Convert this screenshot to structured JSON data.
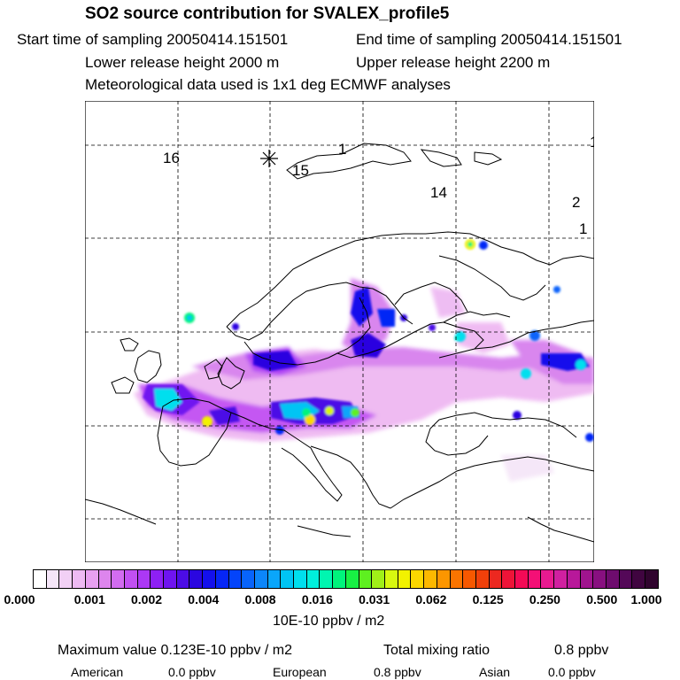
{
  "header": {
    "title": "SO2 source contribution for SVALEX_profile5",
    "start": "Start time of sampling 20050414.151501",
    "end": "End time of sampling 20050414.151501",
    "lower": "Lower release height 2000 m",
    "upper": "Upper release height 2200 m",
    "met": "Meteorological data used is 1x1 deg ECMWF analyses"
  },
  "map": {
    "labels": [
      "16",
      "15",
      "1",
      "14",
      "2",
      "1",
      "1"
    ],
    "marker": "release-site-asterisk"
  },
  "colorbar": {
    "colors": [
      "#ffffff",
      "#f5e6f8",
      "#f2d0f5",
      "#eebaf3",
      "#e7a0f0",
      "#dd85ed",
      "#d26cf0",
      "#c150f2",
      "#ac38f5",
      "#8e20f4",
      "#6f14f0",
      "#4c0ce6",
      "#2a06e0",
      "#1410ec",
      "#0626f6",
      "#0444fa",
      "#0864fb",
      "#0c86fa",
      "#0aa6fa",
      "#00c4f4",
      "#00dfee",
      "#00f0dc",
      "#00f6b0",
      "#00f47c",
      "#18f044",
      "#5ef020",
      "#a0f018",
      "#d8f810",
      "#f2f200",
      "#fcd800",
      "#fcb800",
      "#fc9600",
      "#fa7400",
      "#f65800",
      "#f0400a",
      "#ec2820",
      "#ee1438",
      "#f40a56",
      "#f41076",
      "#e81a90",
      "#d020a0",
      "#b8189a",
      "#a0148e",
      "#881080",
      "#6e0c6e",
      "#540858",
      "#400540",
      "#30042e"
    ],
    "ticks": [
      "0.000",
      "0.001",
      "0.002",
      "0.004",
      "0.008",
      "0.016",
      "0.031",
      "0.062",
      "0.125",
      "0.250",
      "0.500",
      "1.000"
    ],
    "unit": "10E-10 ppbv / m2"
  },
  "footer": {
    "max_label": "Maximum value  0.123E-10 ppbv / m2",
    "total_label": "Total mixing ratio",
    "total_value": "0.8 ppbv",
    "american_label": "American",
    "american_value": "0.0 ppbv",
    "european_label": "European",
    "european_value": "0.8 ppbv",
    "asian_label": "Asian",
    "asian_value": "0.0 ppbv"
  }
}
